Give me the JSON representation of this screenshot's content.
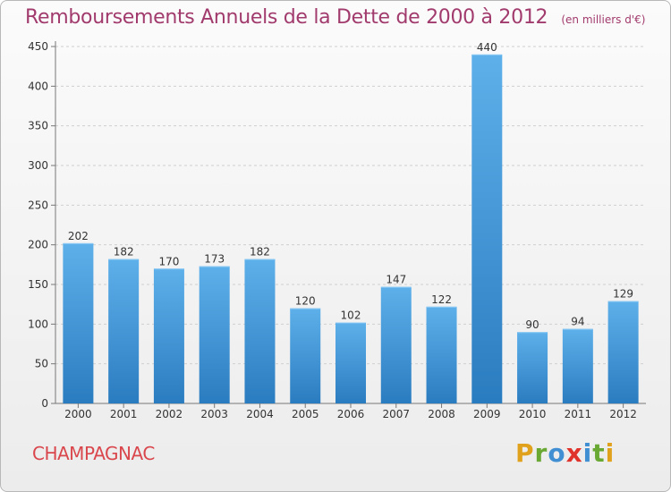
{
  "title": "Remboursements Annuels de la Dette de 2000 à 2012",
  "subtitle": "(en milliers d'€)",
  "commune": "CHAMPAGNAC",
  "logo_text": "Proxiti",
  "colors": {
    "bar_top": "#5eb0ea",
    "bar_bottom": "#2a7cc0",
    "title": "#a23b6d",
    "commune": "#d9474d"
  },
  "chart_data": {
    "type": "bar",
    "title": "Remboursements Annuels de la Dette de 2000 à 2012",
    "subtitle": "(en milliers d'€)",
    "categories": [
      "2000",
      "2001",
      "2002",
      "2003",
      "2004",
      "2005",
      "2006",
      "2007",
      "2008",
      "2009",
      "2010",
      "2011",
      "2012"
    ],
    "values": [
      202,
      182,
      170,
      173,
      182,
      120,
      102,
      147,
      122,
      440,
      90,
      94,
      129
    ],
    "ylim": [
      0,
      450
    ],
    "yticks": [
      0,
      50,
      100,
      150,
      200,
      250,
      300,
      350,
      400,
      450
    ],
    "grid": true
  }
}
